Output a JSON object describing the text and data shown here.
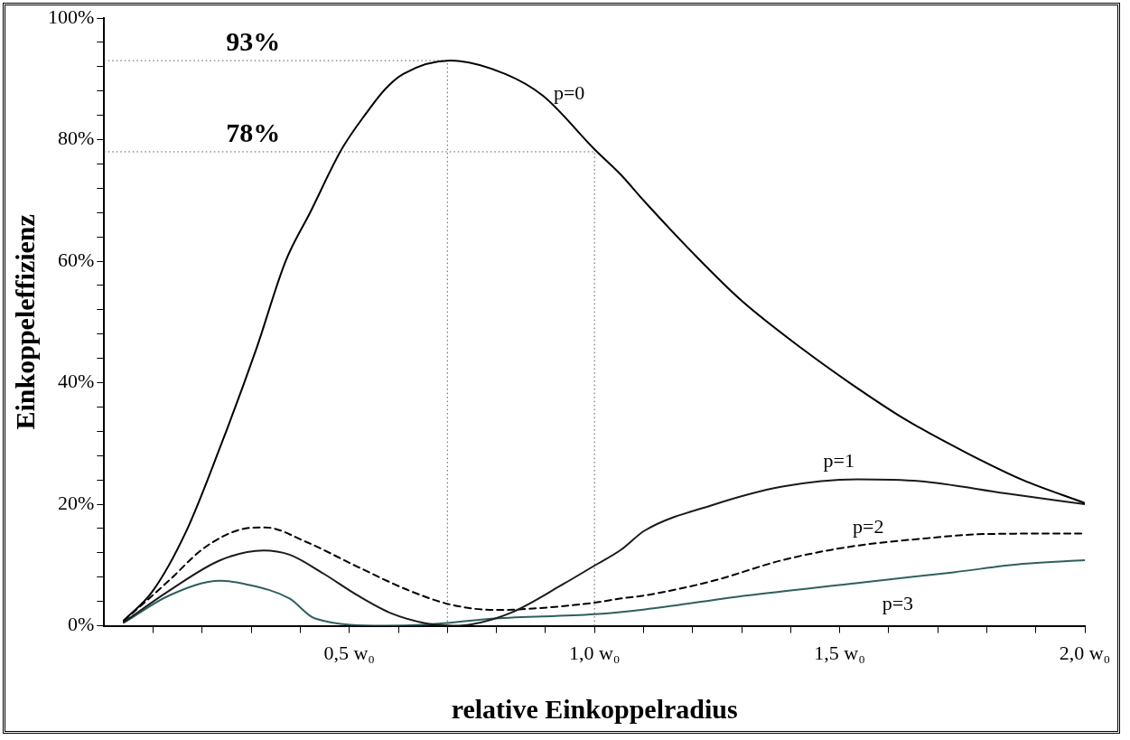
{
  "chart_data": {
    "type": "line",
    "xlabel": "relative Einkoppelradius",
    "ylabel": "Einkoppeleffizienz",
    "xlim": [
      0,
      2
    ],
    "ylim": [
      0,
      100
    ],
    "xticks": [
      {
        "value": 0.1,
        "label": null
      },
      {
        "value": 0.2,
        "label": null
      },
      {
        "value": 0.3,
        "label": null
      },
      {
        "value": 0.4,
        "label": null
      },
      {
        "value": 0.5,
        "label": "0,5 w₀"
      },
      {
        "value": 0.6,
        "label": null
      },
      {
        "value": 0.7,
        "label": null
      },
      {
        "value": 0.8,
        "label": null
      },
      {
        "value": 0.9,
        "label": null
      },
      {
        "value": 1.0,
        "label": "1,0 w₀"
      },
      {
        "value": 1.1,
        "label": null
      },
      {
        "value": 1.2,
        "label": null
      },
      {
        "value": 1.3,
        "label": null
      },
      {
        "value": 1.4,
        "label": null
      },
      {
        "value": 1.5,
        "label": "1,5 w₀"
      },
      {
        "value": 1.6,
        "label": null
      },
      {
        "value": 1.7,
        "label": null
      },
      {
        "value": 1.8,
        "label": null
      },
      {
        "value": 1.9,
        "label": null
      },
      {
        "value": 2.0,
        "label": "2,0 w₀"
      }
    ],
    "yticks": [
      {
        "value": 0,
        "label": "0%"
      },
      {
        "value": 4,
        "label": null
      },
      {
        "value": 8,
        "label": null
      },
      {
        "value": 12,
        "label": null
      },
      {
        "value": 16,
        "label": null
      },
      {
        "value": 20,
        "label": "20%"
      },
      {
        "value": 24,
        "label": null
      },
      {
        "value": 28,
        "label": null
      },
      {
        "value": 32,
        "label": null
      },
      {
        "value": 36,
        "label": null
      },
      {
        "value": 40,
        "label": "40%"
      },
      {
        "value": 44,
        "label": null
      },
      {
        "value": 48,
        "label": null
      },
      {
        "value": 52,
        "label": null
      },
      {
        "value": 56,
        "label": null
      },
      {
        "value": 60,
        "label": "60%"
      },
      {
        "value": 64,
        "label": null
      },
      {
        "value": 68,
        "label": null
      },
      {
        "value": 72,
        "label": null
      },
      {
        "value": 76,
        "label": null
      },
      {
        "value": 80,
        "label": "80%"
      },
      {
        "value": 84,
        "label": null
      },
      {
        "value": 88,
        "label": null
      },
      {
        "value": 92,
        "label": null
      },
      {
        "value": 96,
        "label": null
      },
      {
        "value": 100,
        "label": "100%"
      }
    ],
    "grid": false,
    "marker": "none",
    "series": [
      {
        "name": "p=0",
        "color": "#000000",
        "line_style": "solid",
        "x": [
          0.04,
          0.098,
          0.167,
          0.237,
          0.31,
          0.37,
          0.42,
          0.485,
          0.535,
          0.573,
          0.61,
          0.706,
          0.818,
          0.895,
          1.0,
          1.054,
          1.1,
          1.2,
          1.3,
          1.425,
          1.52,
          1.633,
          1.76,
          1.873,
          2.0
        ],
        "values": [
          0.9,
          5.6,
          15.5,
          29.5,
          45.5,
          60,
          68,
          78.5,
          84.4,
          88.3,
          90.8,
          93,
          90.8,
          87.2,
          78.4,
          74.2,
          70,
          61.4,
          53.5,
          45.5,
          40,
          34,
          28.4,
          24,
          20.2
        ]
      },
      {
        "name": "p=1",
        "color": "#1a1a1a",
        "line_style": "solid",
        "x": [
          0.04,
          0.133,
          0.237,
          0.325,
          0.378,
          0.447,
          0.517,
          0.587,
          0.657,
          0.712,
          0.747,
          0.831,
          0.937,
          1.0,
          1.054,
          1.103,
          1.242,
          1.383,
          1.536,
          1.663,
          1.838,
          2.0
        ],
        "values": [
          0.6,
          5.8,
          10.8,
          12.4,
          11.7,
          8.6,
          5,
          2,
          0.4,
          0,
          0.2,
          2.2,
          6.9,
          9.9,
          12.5,
          15.7,
          19.9,
          22.9,
          24.1,
          23.8,
          21.8,
          20
        ]
      },
      {
        "name": "p=2",
        "color": "#000000",
        "line_style": "dashed",
        "x": [
          0.04,
          0.133,
          0.202,
          0.272,
          0.328,
          0.412,
          0.517,
          0.622,
          0.706,
          0.797,
          0.867,
          1.0,
          1.054,
          1.103,
          1.242,
          1.383,
          1.52,
          1.663,
          1.8,
          2.0
        ],
        "values": [
          0.8,
          7.5,
          12.7,
          15.7,
          16.2,
          13.8,
          9.7,
          5.8,
          3.5,
          2.6,
          2.8,
          3.8,
          4.5,
          5.0,
          7.4,
          10.8,
          13.0,
          14.3,
          15.1,
          15.2
        ]
      },
      {
        "name": "p=3",
        "color": "#2f5f5f",
        "line_style": "solid",
        "x": [
          0.04,
          0.133,
          0.237,
          0.286,
          0.378,
          0.43,
          0.573,
          0.657,
          0.797,
          1.0,
          1.103,
          1.312,
          1.52,
          1.732,
          1.873,
          2.0
        ],
        "values": [
          0.5,
          5.0,
          7.4,
          6.9,
          4.5,
          1.2,
          0,
          0.2,
          1.2,
          1.9,
          2.7,
          5.0,
          6.9,
          8.8,
          10.2,
          10.8
        ]
      }
    ],
    "ref_lines": [
      {
        "axis": "y",
        "value": 93,
        "label": "93%",
        "line_style": "dotted",
        "color": "#555555"
      },
      {
        "axis": "y",
        "value": 78,
        "label": "78%",
        "line_style": "dotted",
        "color": "#555555"
      },
      {
        "axis": "x",
        "value": 0.7,
        "line_style": "dotted",
        "color": "#555555"
      },
      {
        "axis": "x",
        "value": 1.0,
        "line_style": "dotted",
        "color": "#555555"
      }
    ]
  }
}
